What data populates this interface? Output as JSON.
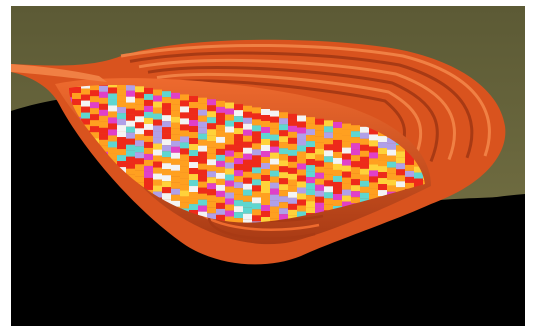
{
  "scene": {
    "subject": "open-pit-block-model",
    "colors": {
      "background": "#000000",
      "terrain": "#5c5a35",
      "terrain_light": "#6e6b40",
      "pit_wall": "#d9531e",
      "pit_wall_dark": "#a83a14",
      "pit_wall_light": "#ee6a2e",
      "bench_edge": "#f08044",
      "block_red": "#ee2a1a",
      "block_orange": "#ffa020",
      "block_yellow": "#ffd23a",
      "block_magenta": "#e040c8",
      "block_cyan": "#5fd6d0",
      "block_lavender": "#b0a0e8",
      "block_white": "#f4f4f4"
    }
  }
}
